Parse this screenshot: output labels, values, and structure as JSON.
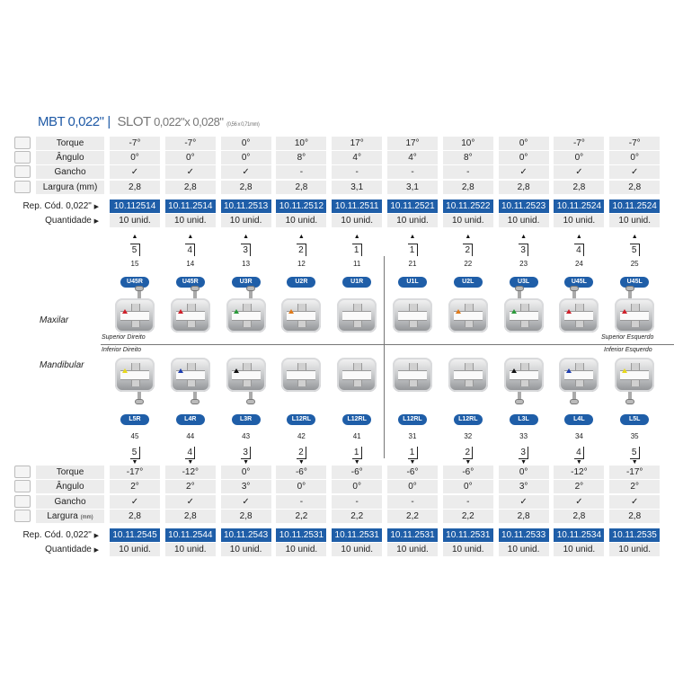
{
  "title": {
    "system": "MBT 0,022\"",
    "separator": "|",
    "slot_label": "SLOT",
    "slot_value": "0,022\"x 0,028\"",
    "slot_mm": "(0,56 x 0,71mm)"
  },
  "accent_color": "#1f5ea8",
  "row_labels": {
    "torque": "Torque",
    "angulo": "Ângulo",
    "gancho": "Gancho",
    "largura": "Largura (mm)",
    "largura_lower": "Largura",
    "largura_unit": "(mm)",
    "rep": "Rep. Cód. 0,022\"",
    "quantidade": "Quantidade"
  },
  "row_icons": [
    "torque-profile-icon",
    "angle-icon",
    "hook-icon",
    "width-icon"
  ],
  "arch_labels": {
    "upper": "Maxilar",
    "lower": "Mandibular"
  },
  "quadrant_labels": {
    "upper_right": "Superior Direito",
    "upper_left": "Superior Esquerdo",
    "lower_right": "Inferior Direito",
    "lower_left": "Inferior Esquerdo"
  },
  "upper": {
    "torque": [
      "-7°",
      "-7°",
      "0°",
      "10°",
      "17°",
      "17°",
      "10°",
      "0°",
      "-7°",
      "-7°"
    ],
    "angulo": [
      "0°",
      "0°",
      "0°",
      "8°",
      "4°",
      "4°",
      "8°",
      "0°",
      "0°",
      "0°"
    ],
    "gancho": [
      "✓",
      "✓",
      "✓",
      "-",
      "-",
      "-",
      "-",
      "✓",
      "✓",
      "✓"
    ],
    "largura": [
      "2,8",
      "2,8",
      "2,8",
      "2,8",
      "3,1",
      "3,1",
      "2,8",
      "2,8",
      "2,8",
      "2,8"
    ],
    "codes": [
      "10.112514",
      "10.11.2514",
      "10.11.2513",
      "10.11.2512",
      "10.11.2511",
      "10.11.2521",
      "10.11.2522",
      "10.11.2523",
      "10.11.2524",
      "10.11.2524"
    ],
    "quantidade": [
      "10 unid.",
      "10 unid.",
      "10 unid.",
      "10 unid.",
      "10 unid.",
      "10 unid.",
      "10 unid.",
      "10 unid.",
      "10 unid.",
      "10 unid."
    ],
    "tooth_position": [
      "5",
      "4",
      "3",
      "2",
      "1",
      "1",
      "2",
      "3",
      "4",
      "5"
    ],
    "tooth_number": [
      "15",
      "14",
      "13",
      "12",
      "11",
      "21",
      "22",
      "23",
      "24",
      "25"
    ],
    "badges": [
      "U45R",
      "U45R",
      "U3R",
      "U2R",
      "U1R",
      "U1L",
      "U2L",
      "U3L",
      "U45L",
      "U45L"
    ],
    "marker_colors": [
      "#d0202a",
      "#d0202a",
      "#2a9a3a",
      "#e07a1a",
      "",
      "",
      "#e07a1a",
      "#2a9a3a",
      "#d0202a",
      "#d0202a"
    ]
  },
  "lower": {
    "torque": [
      "-17°",
      "-12°",
      "0°",
      "-6°",
      "-6°",
      "-6°",
      "-6°",
      "0°",
      "-12°",
      "-17°"
    ],
    "angulo": [
      "2°",
      "2°",
      "3°",
      "0°",
      "0°",
      "0°",
      "0°",
      "3°",
      "2°",
      "2°"
    ],
    "gancho": [
      "✓",
      "✓",
      "✓",
      "-",
      "-",
      "-",
      "-",
      "✓",
      "✓",
      "✓"
    ],
    "largura": [
      "2,8",
      "2,8",
      "2,8",
      "2,2",
      "2,2",
      "2,2",
      "2,2",
      "2,8",
      "2,8",
      "2,8"
    ],
    "codes": [
      "10.11.2545",
      "10.11.2544",
      "10.11.2543",
      "10.11.2531",
      "10.11.2531",
      "10.11.2531",
      "10.11.2531",
      "10.11.2533",
      "10.11.2534",
      "10.11.2535"
    ],
    "quantidade": [
      "10 unid.",
      "10 unid.",
      "10 unid.",
      "10 unid.",
      "10 unid.",
      "10 unid.",
      "10 unid.",
      "10 unid.",
      "10 unid.",
      "10 unid."
    ],
    "tooth_position": [
      "5",
      "4",
      "3",
      "2",
      "1",
      "1",
      "2",
      "3",
      "4",
      "5"
    ],
    "tooth_number": [
      "45",
      "44",
      "43",
      "42",
      "41",
      "31",
      "32",
      "33",
      "34",
      "35"
    ],
    "badges": [
      "L5R",
      "L4R",
      "L3R",
      "L12RL",
      "L12RL",
      "L12RL",
      "L12RL",
      "L3L",
      "L4L",
      "L5L"
    ],
    "marker_colors": [
      "#e8d81a",
      "#1f3fb0",
      "#111111",
      "",
      "",
      "",
      "",
      "#111111",
      "#1f3fb0",
      "#e8d81a"
    ]
  }
}
